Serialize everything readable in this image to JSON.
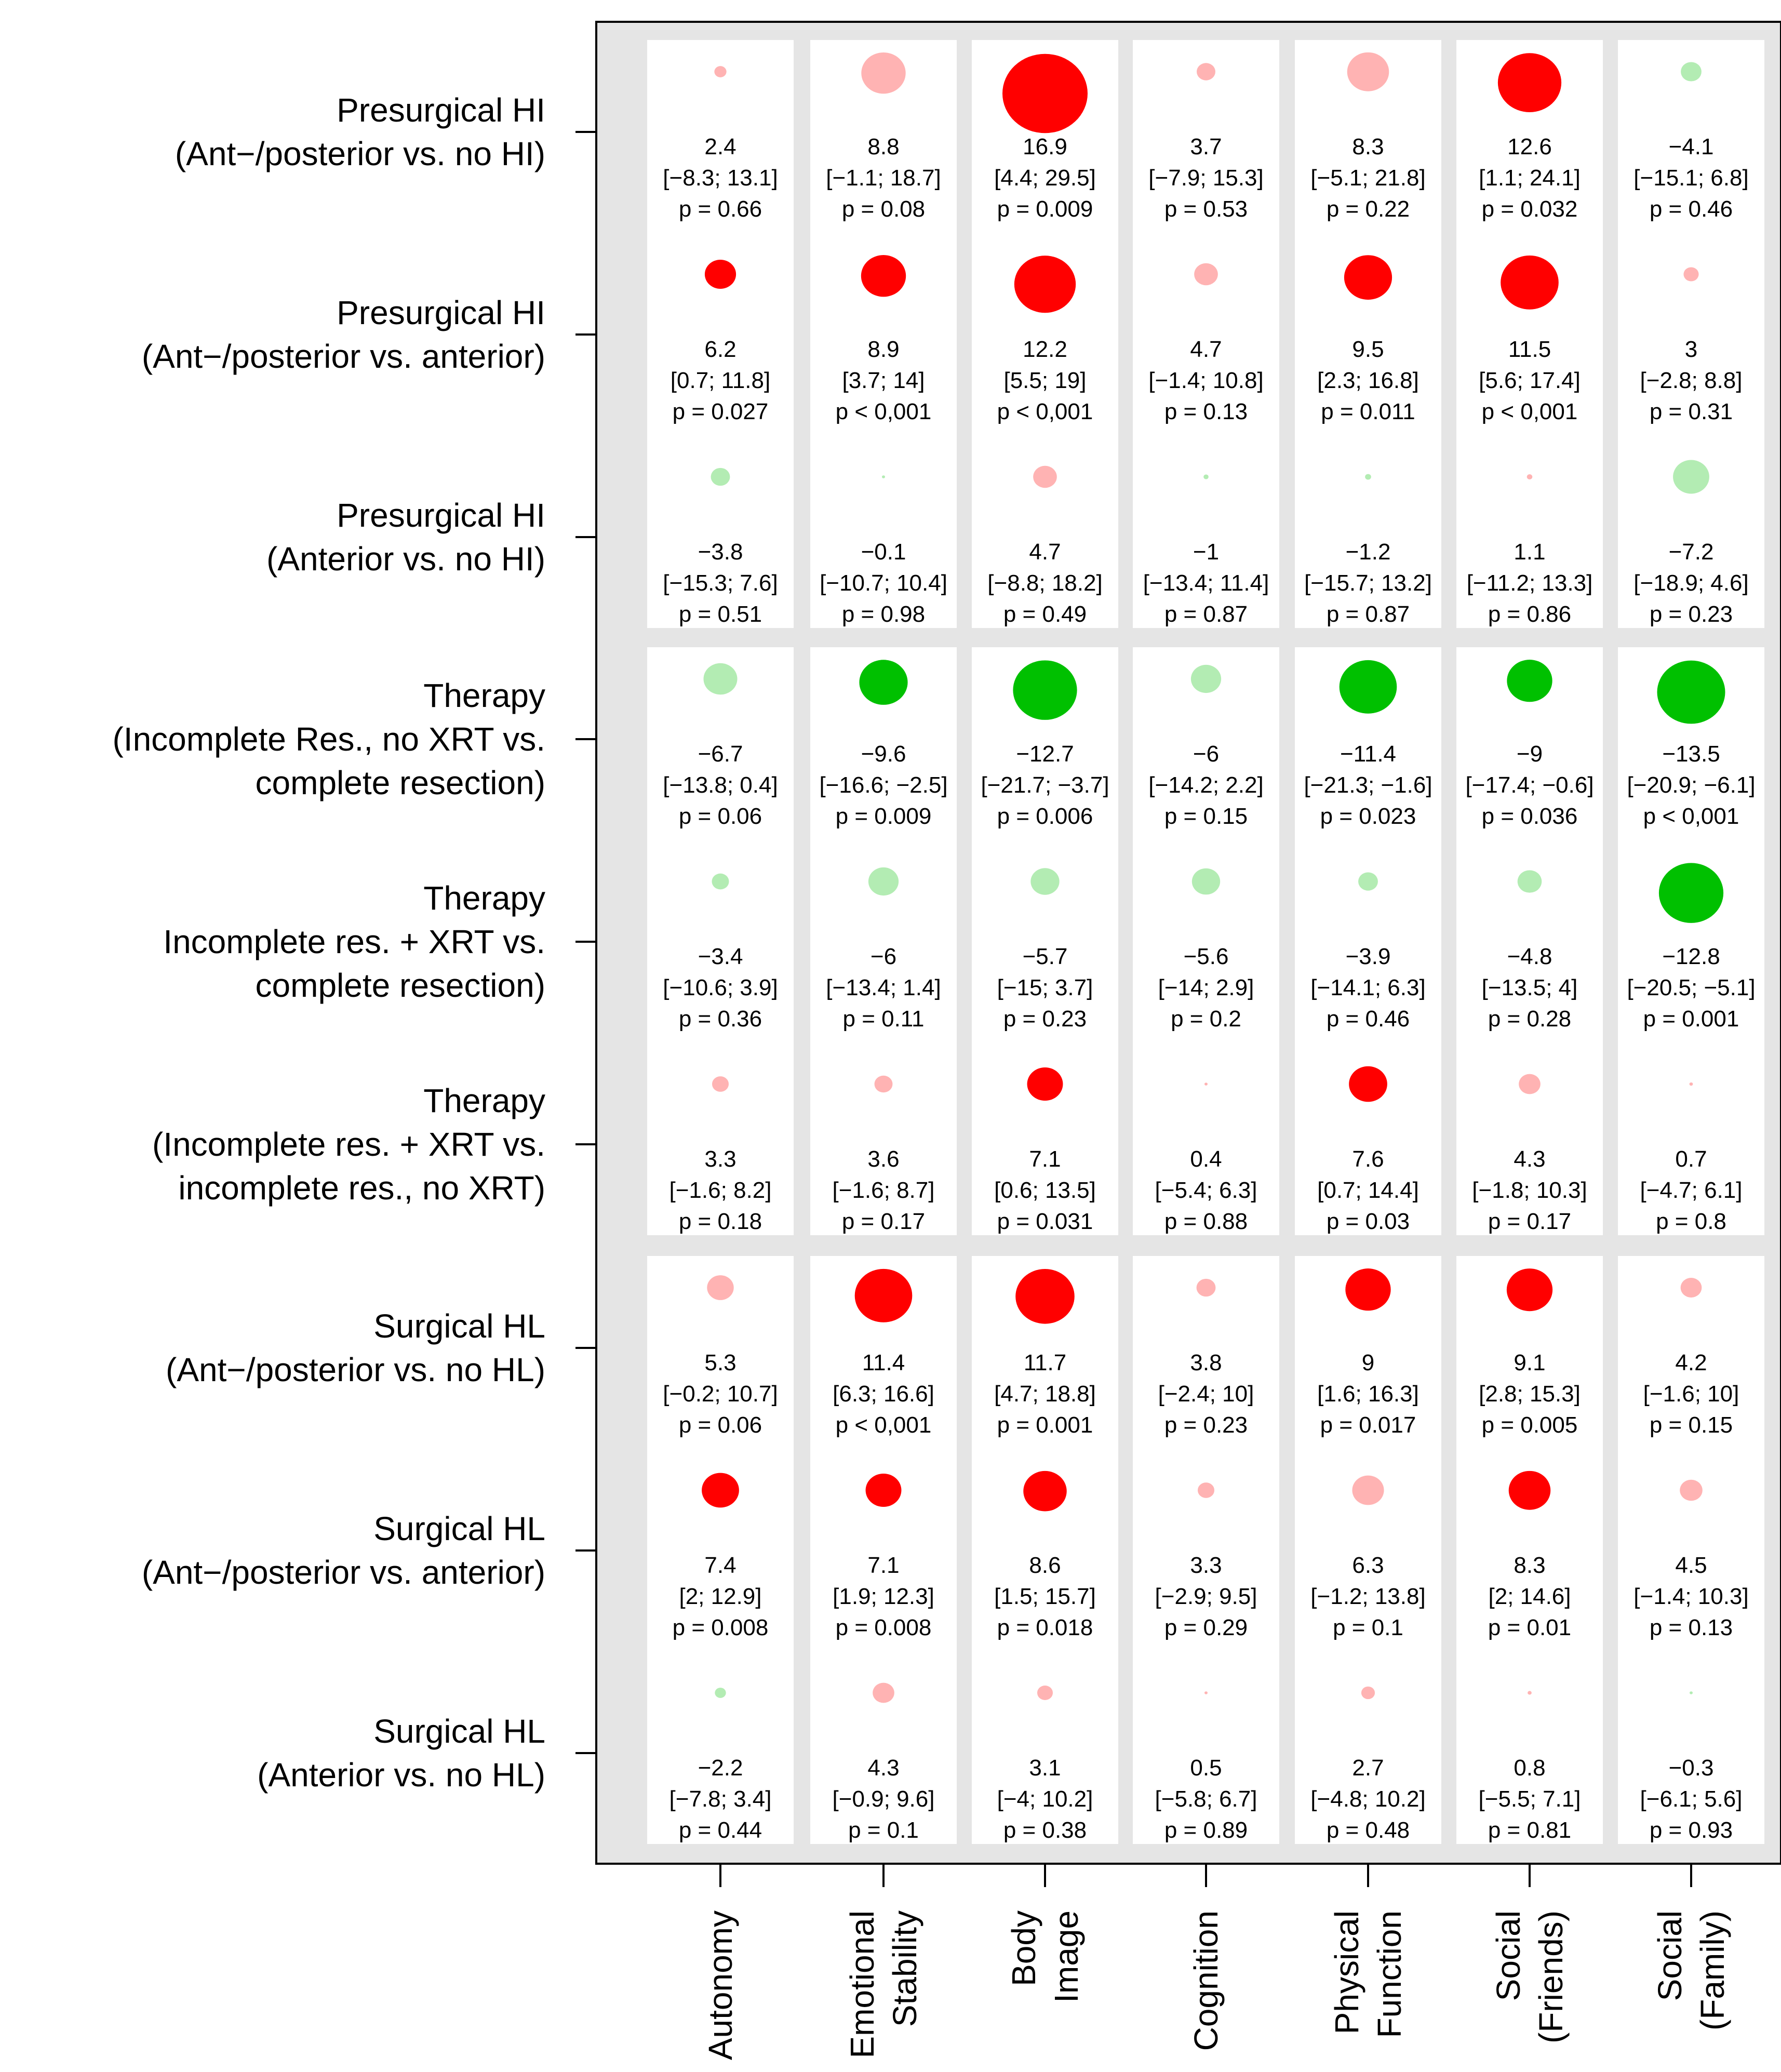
{
  "chart_data": {
    "type": "bubble-matrix",
    "columns": [
      {
        "lines": [
          "Autonomy"
        ]
      },
      {
        "lines": [
          "Emotional",
          "Stability"
        ]
      },
      {
        "lines": [
          "Body",
          "Image"
        ]
      },
      {
        "lines": [
          "Cognition"
        ]
      },
      {
        "lines": [
          "Physical",
          "Function"
        ]
      },
      {
        "lines": [
          "Social",
          "(Friends)"
        ]
      },
      {
        "lines": [
          "Social",
          "(Family)"
        ]
      }
    ],
    "groups": [
      {
        "rows": [
          {
            "lines": [
              "Presurgical HI",
              "(Ant−/posterior vs. no HI)"
            ],
            "cells": [
              {
                "est": "2.4",
                "ci": "[−8.3; 13.1]",
                "p": "p = 0.66",
                "value": 2.4,
                "significant": false
              },
              {
                "est": "8.8",
                "ci": "[−1.1; 18.7]",
                "p": "p = 0.08",
                "value": 8.8,
                "significant": false
              },
              {
                "est": "16.9",
                "ci": "[4.4; 29.5]",
                "p": "p = 0.009",
                "value": 16.9,
                "significant": true
              },
              {
                "est": "3.7",
                "ci": "[−7.9; 15.3]",
                "p": "p = 0.53",
                "value": 3.7,
                "significant": false
              },
              {
                "est": "8.3",
                "ci": "[−5.1; 21.8]",
                "p": "p = 0.22",
                "value": 8.3,
                "significant": false
              },
              {
                "est": "12.6",
                "ci": "[1.1; 24.1]",
                "p": "p = 0.032",
                "value": 12.6,
                "significant": true
              },
              {
                "est": "−4.1",
                "ci": "[−15.1; 6.8]",
                "p": "p = 0.46",
                "value": -4.1,
                "significant": false
              }
            ]
          },
          {
            "lines": [
              "Presurgical HI",
              "(Ant−/posterior vs. anterior)"
            ],
            "cells": [
              {
                "est": "6.2",
                "ci": "[0.7; 11.8]",
                "p": "p = 0.027",
                "value": 6.2,
                "significant": true
              },
              {
                "est": "8.9",
                "ci": "[3.7; 14]",
                "p": "p < 0,001",
                "value": 8.9,
                "significant": true
              },
              {
                "est": "12.2",
                "ci": "[5.5; 19]",
                "p": "p < 0,001",
                "value": 12.2,
                "significant": true
              },
              {
                "est": "4.7",
                "ci": "[−1.4; 10.8]",
                "p": "p = 0.13",
                "value": 4.7,
                "significant": false
              },
              {
                "est": "9.5",
                "ci": "[2.3; 16.8]",
                "p": "p = 0.011",
                "value": 9.5,
                "significant": true
              },
              {
                "est": "11.5",
                "ci": "[5.6; 17.4]",
                "p": "p < 0,001",
                "value": 11.5,
                "significant": true
              },
              {
                "est": "3",
                "ci": "[−2.8; 8.8]",
                "p": "p = 0.31",
                "value": 3,
                "significant": false
              }
            ]
          },
          {
            "lines": [
              "Presurgical HI",
              "(Anterior vs. no HI)"
            ],
            "cells": [
              {
                "est": "−3.8",
                "ci": "[−15.3; 7.6]",
                "p": "p = 0.51",
                "value": -3.8,
                "significant": false
              },
              {
                "est": "−0.1",
                "ci": "[−10.7; 10.4]",
                "p": "p = 0.98",
                "value": -0.1,
                "significant": false
              },
              {
                "est": "4.7",
                "ci": "[−8.8; 18.2]",
                "p": "p = 0.49",
                "value": 4.7,
                "significant": false
              },
              {
                "est": "−1",
                "ci": "[−13.4; 11.4]",
                "p": "p = 0.87",
                "value": -1,
                "significant": false
              },
              {
                "est": "−1.2",
                "ci": "[−15.7; 13.2]",
                "p": "p = 0.87",
                "value": -1.2,
                "significant": false
              },
              {
                "est": "1.1",
                "ci": "[−11.2; 13.3]",
                "p": "p = 0.86",
                "value": 1.1,
                "significant": false
              },
              {
                "est": "−7.2",
                "ci": "[−18.9; 4.6]",
                "p": "p = 0.23",
                "value": -7.2,
                "significant": false
              }
            ]
          }
        ]
      },
      {
        "rows": [
          {
            "lines": [
              "Therapy",
              "(Incomplete Res., no XRT vs.",
              "complete resection)"
            ],
            "cells": [
              {
                "est": "−6.7",
                "ci": "[−13.8; 0.4]",
                "p": "p = 0.06",
                "value": -6.7,
                "significant": false
              },
              {
                "est": "−9.6",
                "ci": "[−16.6; −2.5]",
                "p": "p = 0.009",
                "value": -9.6,
                "significant": true
              },
              {
                "est": "−12.7",
                "ci": "[−21.7; −3.7]",
                "p": "p = 0.006",
                "value": -12.7,
                "significant": true
              },
              {
                "est": "−6",
                "ci": "[−14.2; 2.2]",
                "p": "p = 0.15",
                "value": -6,
                "significant": false
              },
              {
                "est": "−11.4",
                "ci": "[−21.3; −1.6]",
                "p": "p = 0.023",
                "value": -11.4,
                "significant": true
              },
              {
                "est": "−9",
                "ci": "[−17.4; −0.6]",
                "p": "p = 0.036",
                "value": -9,
                "significant": true
              },
              {
                "est": "−13.5",
                "ci": "[−20.9; −6.1]",
                "p": "p < 0,001",
                "value": -13.5,
                "significant": true
              }
            ]
          },
          {
            "lines": [
              "Therapy",
              "Incomplete res. + XRT vs.",
              "complete resection)"
            ],
            "cells": [
              {
                "est": "−3.4",
                "ci": "[−10.6; 3.9]",
                "p": "p = 0.36",
                "value": -3.4,
                "significant": false
              },
              {
                "est": "−6",
                "ci": "[−13.4; 1.4]",
                "p": "p = 0.11",
                "value": -6,
                "significant": false
              },
              {
                "est": "−5.7",
                "ci": "[−15; 3.7]",
                "p": "p = 0.23",
                "value": -5.7,
                "significant": false
              },
              {
                "est": "−5.6",
                "ci": "[−14; 2.9]",
                "p": "p = 0.2",
                "value": -5.6,
                "significant": false
              },
              {
                "est": "−3.9",
                "ci": "[−14.1; 6.3]",
                "p": "p = 0.46",
                "value": -3.9,
                "significant": false
              },
              {
                "est": "−4.8",
                "ci": "[−13.5; 4]",
                "p": "p = 0.28",
                "value": -4.8,
                "significant": false
              },
              {
                "est": "−12.8",
                "ci": "[−20.5; −5.1]",
                "p": "p = 0.001",
                "value": -12.8,
                "significant": true
              }
            ]
          },
          {
            "lines": [
              "Therapy",
              "(Incomplete res. + XRT vs.",
              "incomplete res., no XRT)"
            ],
            "cells": [
              {
                "est": "3.3",
                "ci": "[−1.6; 8.2]",
                "p": "p = 0.18",
                "value": 3.3,
                "significant": false
              },
              {
                "est": "3.6",
                "ci": "[−1.6; 8.7]",
                "p": "p = 0.17",
                "value": 3.6,
                "significant": false
              },
              {
                "est": "7.1",
                "ci": "[0.6; 13.5]",
                "p": "p = 0.031",
                "value": 7.1,
                "significant": true
              },
              {
                "est": "0.4",
                "ci": "[−5.4; 6.3]",
                "p": "p = 0.88",
                "value": 0.4,
                "significant": false
              },
              {
                "est": "7.6",
                "ci": "[0.7; 14.4]",
                "p": "p = 0.03",
                "value": 7.6,
                "significant": true
              },
              {
                "est": "4.3",
                "ci": "[−1.8; 10.3]",
                "p": "p = 0.17",
                "value": 4.3,
                "significant": false
              },
              {
                "est": "0.7",
                "ci": "[−4.7; 6.1]",
                "p": "p = 0.8",
                "value": 0.7,
                "significant": false
              }
            ]
          }
        ]
      },
      {
        "rows": [
          {
            "lines": [
              "Surgical HL",
              "(Ant−/posterior vs. no HL)"
            ],
            "cells": [
              {
                "est": "5.3",
                "ci": "[−0.2; 10.7]",
                "p": "p = 0.06",
                "value": 5.3,
                "significant": false
              },
              {
                "est": "11.4",
                "ci": "[6.3; 16.6]",
                "p": "p < 0,001",
                "value": 11.4,
                "significant": true
              },
              {
                "est": "11.7",
                "ci": "[4.7; 18.8]",
                "p": "p = 0.001",
                "value": 11.7,
                "significant": true
              },
              {
                "est": "3.8",
                "ci": "[−2.4; 10]",
                "p": "p = 0.23",
                "value": 3.8,
                "significant": false
              },
              {
                "est": "9",
                "ci": "[1.6; 16.3]",
                "p": "p = 0.017",
                "value": 9,
                "significant": true
              },
              {
                "est": "9.1",
                "ci": "[2.8; 15.3]",
                "p": "p = 0.005",
                "value": 9.1,
                "significant": true
              },
              {
                "est": "4.2",
                "ci": "[−1.6; 10]",
                "p": "p = 0.15",
                "value": 4.2,
                "significant": false
              }
            ]
          },
          {
            "lines": [
              "Surgical HL",
              "(Ant−/posterior vs. anterior)"
            ],
            "cells": [
              {
                "est": "7.4",
                "ci": "[2; 12.9]",
                "p": "p = 0.008",
                "value": 7.4,
                "significant": true
              },
              {
                "est": "7.1",
                "ci": "[1.9; 12.3]",
                "p": "p = 0.008",
                "value": 7.1,
                "significant": true
              },
              {
                "est": "8.6",
                "ci": "[1.5; 15.7]",
                "p": "p = 0.018",
                "value": 8.6,
                "significant": true
              },
              {
                "est": "3.3",
                "ci": "[−2.9; 9.5]",
                "p": "p = 0.29",
                "value": 3.3,
                "significant": false
              },
              {
                "est": "6.3",
                "ci": "[−1.2; 13.8]",
                "p": "p = 0.1",
                "value": 6.3,
                "significant": false
              },
              {
                "est": "8.3",
                "ci": "[2; 14.6]",
                "p": "p = 0.01",
                "value": 8.3,
                "significant": true
              },
              {
                "est": "4.5",
                "ci": "[−1.4; 10.3]",
                "p": "p = 0.13",
                "value": 4.5,
                "significant": false
              }
            ]
          },
          {
            "lines": [
              "Surgical HL",
              "(Anterior vs. no HL)"
            ],
            "cells": [
              {
                "est": "−2.2",
                "ci": "[−7.8; 3.4]",
                "p": "p = 0.44",
                "value": -2.2,
                "significant": false
              },
              {
                "est": "4.3",
                "ci": "[−0.9; 9.6]",
                "p": "p = 0.1",
                "value": 4.3,
                "significant": false
              },
              {
                "est": "3.1",
                "ci": "[−4; 10.2]",
                "p": "p = 0.38",
                "value": 3.1,
                "significant": false
              },
              {
                "est": "0.5",
                "ci": "[−5.8; 6.7]",
                "p": "p = 0.89",
                "value": 0.5,
                "significant": false
              },
              {
                "est": "2.7",
                "ci": "[−4.8; 10.2]",
                "p": "p = 0.48",
                "value": 2.7,
                "significant": false
              },
              {
                "est": "0.8",
                "ci": "[−5.5; 7.1]",
                "p": "p = 0.81",
                "value": 0.8,
                "significant": false
              },
              {
                "est": "−0.3",
                "ci": "[−6.1; 5.6]",
                "p": "p = 0.93",
                "value": -0.3,
                "significant": false
              }
            ]
          }
        ]
      }
    ],
    "colors": {
      "positive_significant": "#ff0000",
      "positive_nonsignificant": "#ffb3b3",
      "negative_significant": "#00c000",
      "negative_nonsignificant": "#b3ecb3",
      "background": "#e5e5e5",
      "cell": "#ffffff"
    }
  }
}
